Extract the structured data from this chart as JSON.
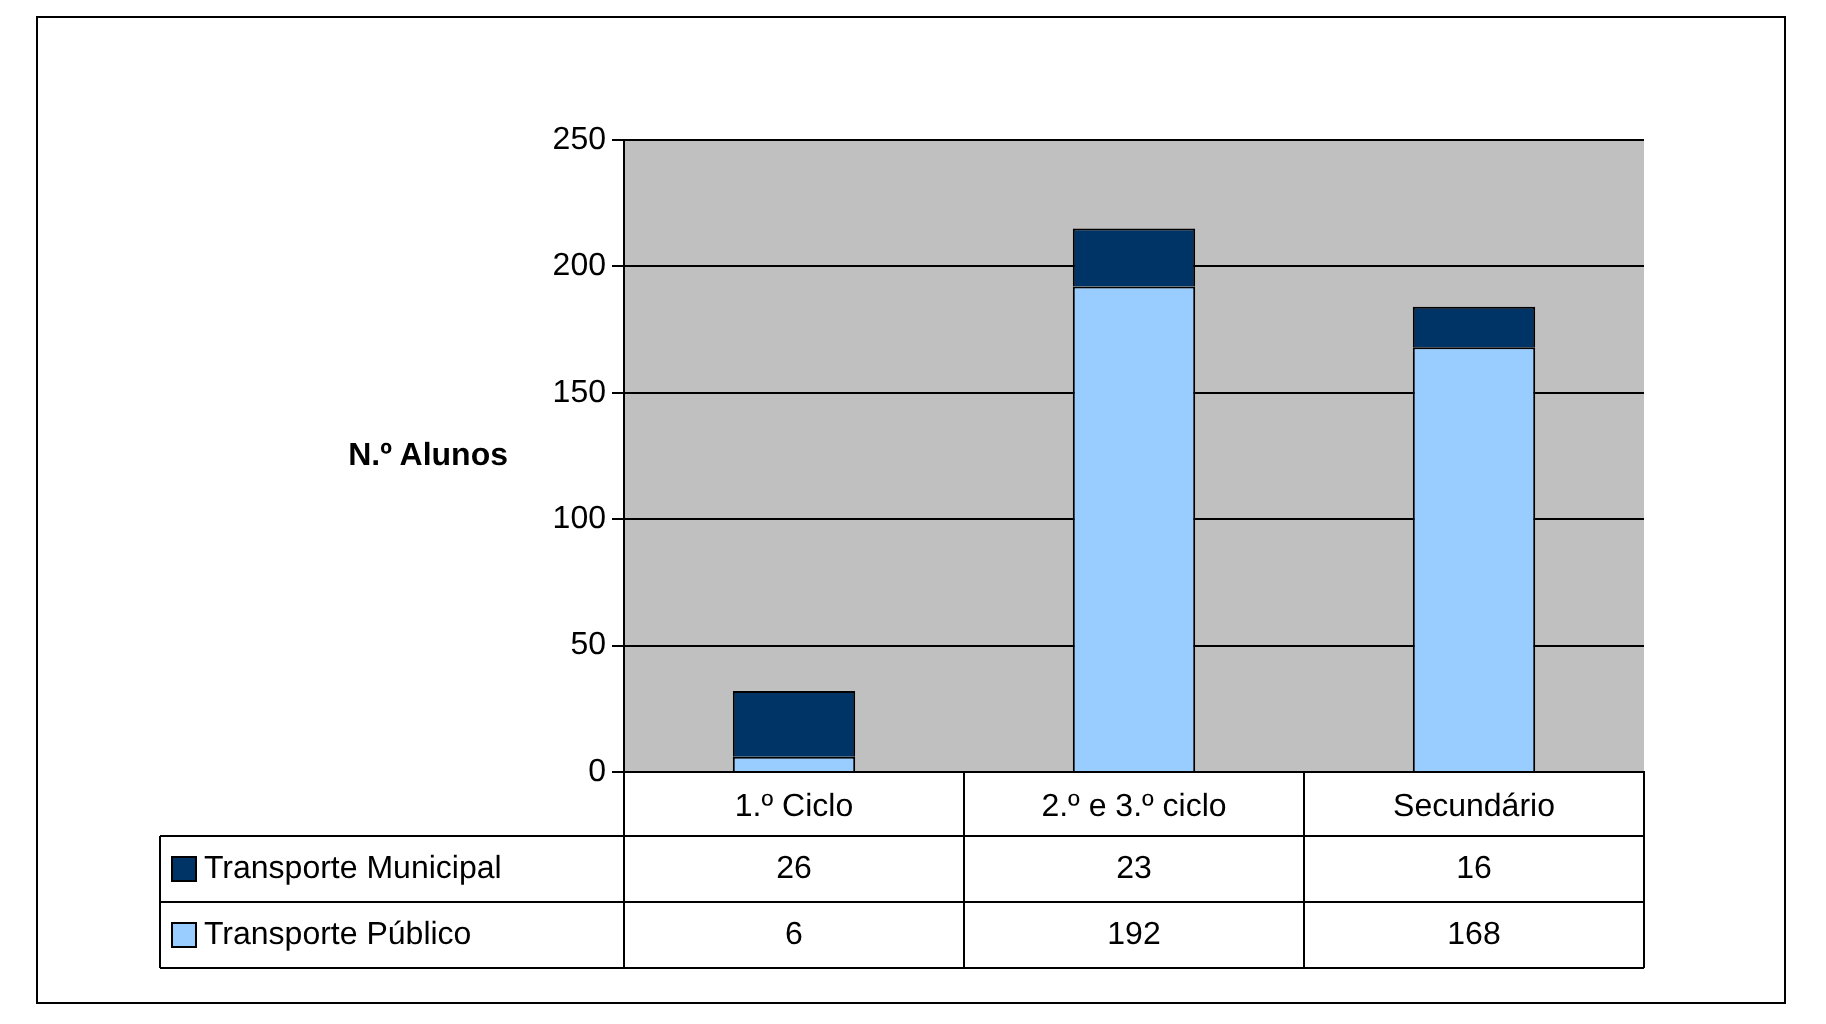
{
  "chart_data": {
    "type": "bar",
    "stacked": true,
    "ylabel": "N.º Alunos",
    "categories": [
      "1.º Ciclo",
      "2.º e 3.º ciclo",
      "Secundário"
    ],
    "series": [
      {
        "name": "Transporte Público",
        "color": "#99ccff",
        "values": [
          6,
          192,
          168
        ]
      },
      {
        "name": "Transporte Municipal",
        "color": "#003366",
        "values": [
          26,
          23,
          16
        ]
      }
    ],
    "ylim": [
      0,
      250
    ],
    "yticks": [
      0,
      50,
      100,
      150,
      200,
      250
    ],
    "grid": "y",
    "legend": "bottom",
    "data_labels": true
  }
}
